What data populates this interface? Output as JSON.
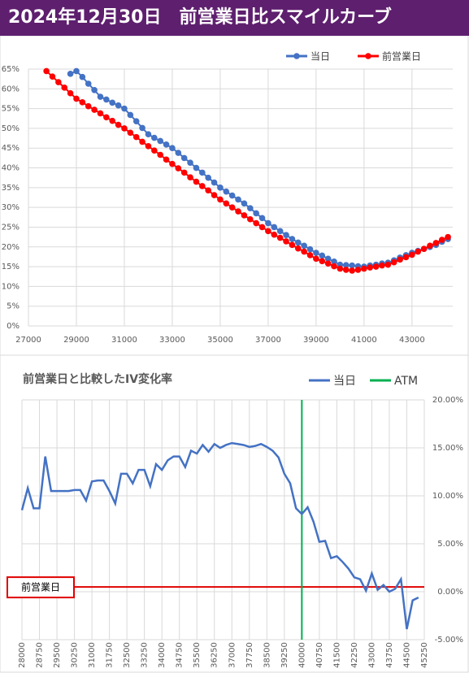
{
  "header": {
    "title": "2024年12月30日　前営業日比スマイルカーブ"
  },
  "chart_data": [
    {
      "type": "line",
      "markers": true,
      "grid": true,
      "legend_position": "top",
      "y_axis_side": "left",
      "x": [
        27750,
        28000,
        28250,
        28500,
        28750,
        29000,
        29250,
        29500,
        29750,
        30000,
        30250,
        30500,
        30750,
        31000,
        31250,
        31500,
        31750,
        32000,
        32250,
        32500,
        32750,
        33000,
        33250,
        33500,
        33750,
        34000,
        34250,
        34500,
        34750,
        35000,
        35250,
        35500,
        35750,
        36000,
        36250,
        36500,
        36750,
        37000,
        37250,
        37500,
        37750,
        38000,
        38250,
        38500,
        38750,
        39000,
        39250,
        39500,
        39750,
        40000,
        40250,
        40500,
        40750,
        41000,
        41250,
        41500,
        41750,
        42000,
        42250,
        42500,
        42750,
        43000,
        43250,
        43500,
        43750,
        44000,
        44250,
        44500
      ],
      "xlim": [
        27000,
        44700
      ],
      "xticks": [
        27000,
        29000,
        31000,
        33000,
        35000,
        37000,
        39000,
        41000,
        43000
      ],
      "ylim": [
        0,
        65
      ],
      "yticks": [
        {
          "value": 0,
          "label": "0%"
        },
        {
          "value": 5,
          "label": "5%"
        },
        {
          "value": 10,
          "label": "10%"
        },
        {
          "value": 15,
          "label": "15%"
        },
        {
          "value": 20,
          "label": "20%"
        },
        {
          "value": 25,
          "label": "25%"
        },
        {
          "value": 30,
          "label": "30%"
        },
        {
          "value": 35,
          "label": "35%"
        },
        {
          "value": 40,
          "label": "40%"
        },
        {
          "value": 45,
          "label": "45%"
        },
        {
          "value": 50,
          "label": "50%"
        },
        {
          "value": 55,
          "label": "55%"
        },
        {
          "value": 60,
          "label": "60%"
        },
        {
          "value": 65,
          "label": "65%"
        }
      ],
      "series": [
        {
          "name": "当日",
          "color": "#4472c4",
          "values": [
            null,
            null,
            null,
            null,
            63.8,
            64.5,
            63.0,
            61.3,
            59.7,
            58.0,
            57.3,
            56.5,
            55.8,
            55.0,
            53.4,
            51.8,
            50.1,
            48.5,
            47.6,
            46.8,
            45.9,
            45.0,
            43.8,
            42.5,
            41.3,
            40.0,
            38.8,
            37.5,
            36.3,
            35.0,
            34.0,
            33.0,
            32.0,
            31.0,
            29.8,
            28.5,
            27.3,
            26.0,
            25.0,
            24.0,
            23.0,
            22.0,
            21.1,
            20.3,
            19.4,
            18.5,
            17.8,
            17.0,
            16.3,
            15.5,
            15.4,
            15.3,
            15.1,
            15.0,
            15.3,
            15.5,
            15.8,
            16.0,
            16.6,
            17.3,
            17.9,
            18.5,
            19.0,
            19.5,
            20.0,
            20.5,
            21.3,
            22.0
          ]
        },
        {
          "name": "前営業日",
          "color": "#ff0000",
          "values": [
            64.5,
            63.1,
            61.7,
            60.3,
            58.9,
            57.5,
            56.6,
            55.6,
            54.7,
            53.8,
            52.8,
            51.9,
            50.9,
            50.0,
            48.9,
            47.8,
            46.6,
            45.5,
            44.4,
            43.3,
            42.1,
            41.0,
            39.9,
            38.8,
            37.6,
            36.5,
            35.4,
            34.3,
            33.1,
            32.0,
            31.0,
            30.0,
            29.0,
            28.0,
            27.0,
            26.0,
            25.0,
            24.0,
            23.1,
            22.3,
            21.4,
            20.5,
            19.6,
            18.8,
            17.9,
            17.0,
            16.4,
            15.8,
            15.1,
            14.5,
            14.2,
            14.0,
            14.2,
            14.5,
            14.8,
            15.0,
            15.3,
            15.5,
            16.1,
            16.8,
            17.4,
            18.0,
            18.8,
            19.5,
            20.3,
            21.0,
            21.8,
            22.5
          ]
        }
      ]
    },
    {
      "type": "line",
      "markers": false,
      "grid": true,
      "legend_position": "top",
      "y_axis_side": "right",
      "title": "前営業日と比較したIV変化率",
      "x": [
        28000,
        28250,
        28500,
        28750,
        29000,
        29250,
        29500,
        29750,
        30000,
        30250,
        30500,
        30750,
        31000,
        31250,
        31500,
        31750,
        32000,
        32250,
        32500,
        32750,
        33000,
        33250,
        33500,
        33750,
        34000,
        34250,
        34500,
        34750,
        35000,
        35250,
        35500,
        35750,
        36000,
        36250,
        36500,
        36750,
        37000,
        37250,
        37500,
        37750,
        38000,
        38250,
        38500,
        38750,
        39000,
        39250,
        39500,
        39750,
        40000,
        40250,
        40500,
        40750,
        41000,
        41250,
        41500,
        41750,
        42000,
        42250,
        42500,
        42750,
        43000,
        43250,
        43500,
        43750,
        44000,
        44250,
        44500,
        44750,
        45000
      ],
      "xlim": [
        28000,
        45250
      ],
      "xticks": [
        28000,
        28750,
        29500,
        30250,
        31000,
        31750,
        32500,
        33250,
        34000,
        34750,
        35500,
        36250,
        37000,
        37750,
        38500,
        39250,
        40000,
        40750,
        41500,
        42250,
        43000,
        43750,
        44500,
        45250
      ],
      "ylim": [
        -5,
        20
      ],
      "yticks": [
        {
          "value": -5,
          "label": "-5.00%"
        },
        {
          "value": 0,
          "label": "0.00%"
        },
        {
          "value": 5,
          "label": "5.00%"
        },
        {
          "value": 10,
          "label": "10.00%"
        },
        {
          "value": 15,
          "label": "15.00%"
        },
        {
          "value": 20,
          "label": "20.00%"
        }
      ],
      "series": [
        {
          "name": "当日",
          "color": "#4472c4",
          "values": [
            8.5,
            10.8,
            8.7,
            8.7,
            14.1,
            10.5,
            10.5,
            10.5,
            10.5,
            10.6,
            10.6,
            9.5,
            11.5,
            11.6,
            11.6,
            10.5,
            9.2,
            12.3,
            12.3,
            11.3,
            12.7,
            12.7,
            11.0,
            13.3,
            12.7,
            13.7,
            14.1,
            14.1,
            13.0,
            14.7,
            14.4,
            15.3,
            14.6,
            15.4,
            15.0,
            15.3,
            15.5,
            15.4,
            15.3,
            15.1,
            15.2,
            15.4,
            15.1,
            14.7,
            14.0,
            12.3,
            11.3,
            8.7,
            8.1,
            8.8,
            7.3,
            5.2,
            5.3,
            3.5,
            3.7,
            3.1,
            2.4,
            1.5,
            1.3,
            0.1,
            1.9,
            0.2,
            0.7,
            0.0,
            0.3,
            1.3,
            -3.9,
            -0.9,
            -0.6
          ]
        }
      ],
      "vlines": [
        {
          "name": "ATM",
          "color": "#00b050",
          "x": 40000
        }
      ],
      "hlines": [
        {
          "label": "前営業日",
          "color": "#e00000",
          "value": 0.5
        }
      ]
    }
  ]
}
